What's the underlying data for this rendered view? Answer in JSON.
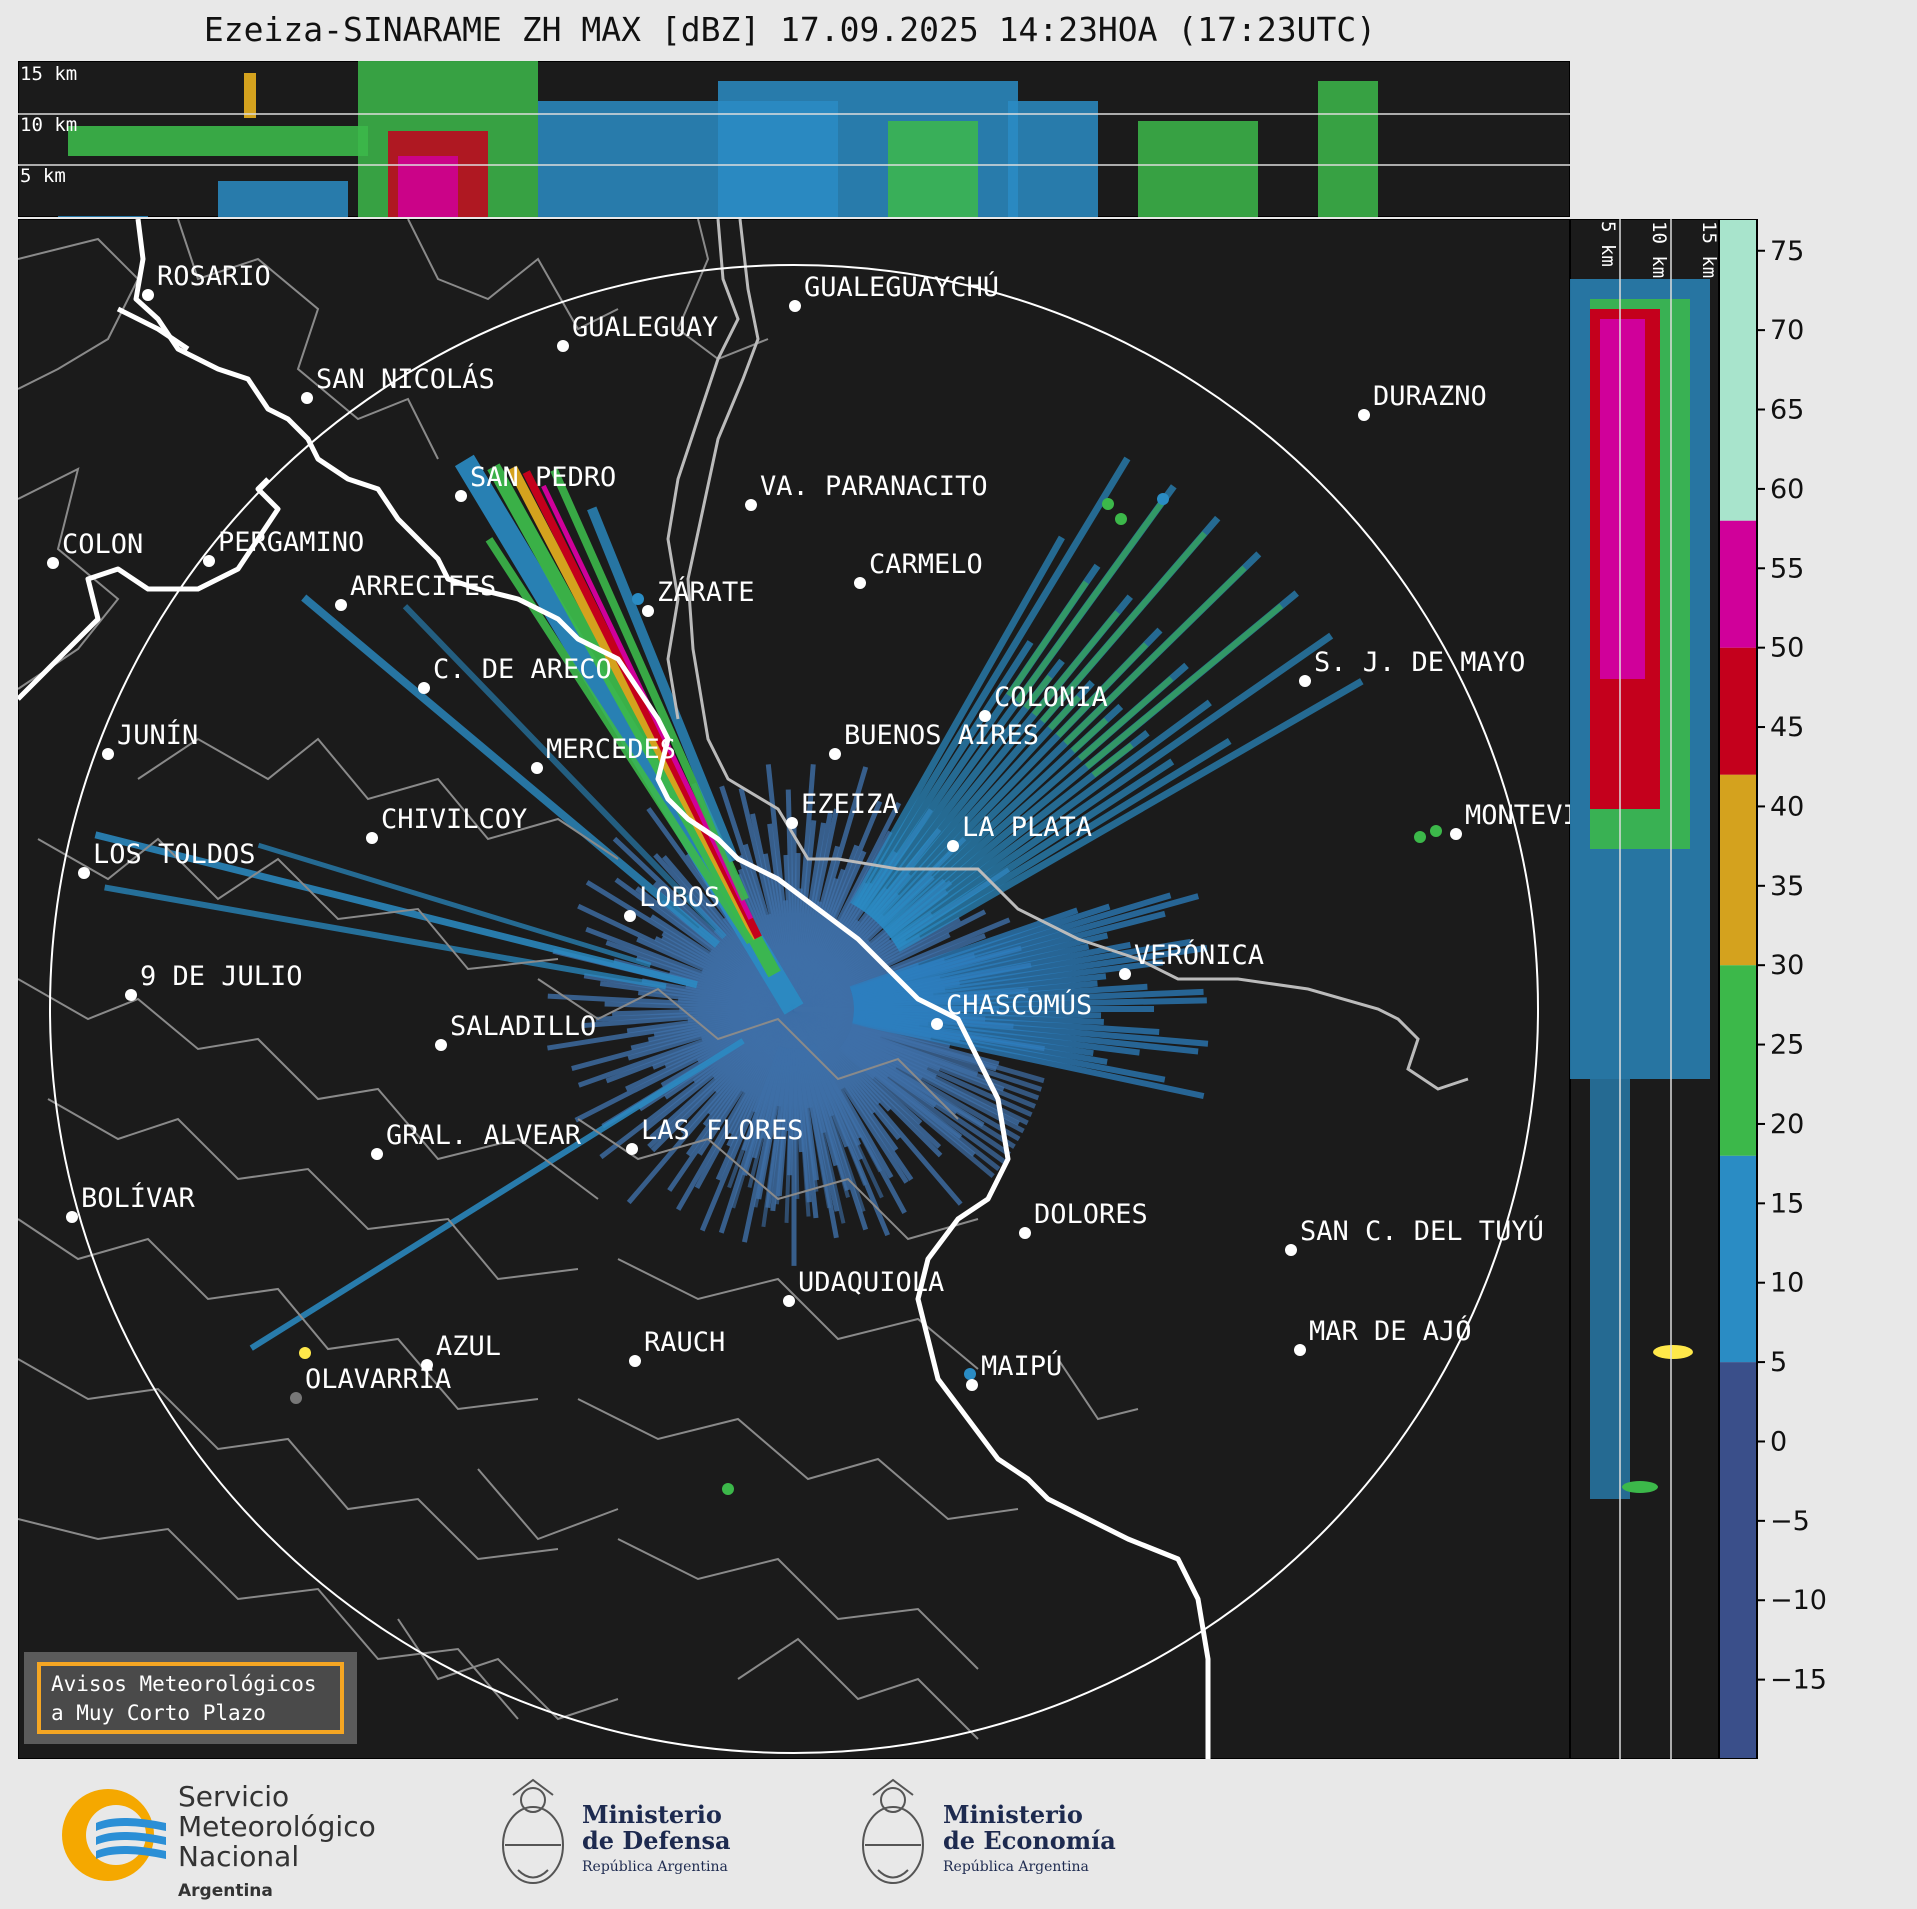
{
  "title": "Ezeiza-SINARAME ZH MAX [dBZ] 17.09.2025 14:23HOA (17:23UTC)",
  "radar_site": "EZEIZA",
  "product": "ZH MAX",
  "units": "dBZ",
  "colors": {
    "background": "#e8e8e8",
    "panel": "#1b1b1b",
    "province_borders": "#8a8a8a",
    "coast": "#ffffff",
    "warning_border": "#f5a623"
  },
  "height_labels": [
    "15 km",
    "10 km",
    "5 km"
  ],
  "side_height_labels": [
    "5 km",
    "10 km",
    "15 km"
  ],
  "colorbar": {
    "ticks": [
      "75",
      "70",
      "65",
      "60",
      "55",
      "50",
      "45",
      "40",
      "35",
      "30",
      "25",
      "20",
      "15",
      "10",
      "5",
      "0",
      "−5",
      "−10",
      "−15"
    ],
    "stops": [
      {
        "min": -20,
        "max": 5,
        "color": "#3a4f8a"
      },
      {
        "min": 5,
        "max": 18,
        "color": "#2a8cc4"
      },
      {
        "min": 18,
        "max": 30,
        "color": "#3cb84a"
      },
      {
        "min": 30,
        "max": 42,
        "color": "#d4a21e"
      },
      {
        "min": 42,
        "max": 50,
        "color": "#c4001c"
      },
      {
        "min": 50,
        "max": 58,
        "color": "#d0009a"
      },
      {
        "min": 58,
        "max": 77,
        "color": "#a8e4cc"
      }
    ]
  },
  "cities": [
    {
      "name": "ROSARIO"
    },
    {
      "name": "GUALEGUAYCHÚ"
    },
    {
      "name": "GUALEGUAY"
    },
    {
      "name": "SAN NICOLÁS"
    },
    {
      "name": "DURAZNO"
    },
    {
      "name": "SAN PEDRO"
    },
    {
      "name": "VA. PARANACITO"
    },
    {
      "name": "COLON"
    },
    {
      "name": "PERGAMINO"
    },
    {
      "name": "CARMELO"
    },
    {
      "name": "ARRECIFES"
    },
    {
      "name": "ZÁRATE"
    },
    {
      "name": "S. J. DE MAYO"
    },
    {
      "name": "C. DE ARECO"
    },
    {
      "name": "COLONIA"
    },
    {
      "name": "JUNÍN"
    },
    {
      "name": "BUENOS AIRES"
    },
    {
      "name": "MERCEDES"
    },
    {
      "name": "EZEIZA"
    },
    {
      "name": "MONTEVIDEO"
    },
    {
      "name": "CHIVILCOY"
    },
    {
      "name": "LA PLATA"
    },
    {
      "name": "LOS TOLDOS"
    },
    {
      "name": "LOBOS"
    },
    {
      "name": "VERÓNICA"
    },
    {
      "name": "9 DE JULIO"
    },
    {
      "name": "CHASCOMÚS"
    },
    {
      "name": "SALADILLO"
    },
    {
      "name": "GRAL. ALVEAR"
    },
    {
      "name": "LAS FLORES"
    },
    {
      "name": "BOLÍVAR"
    },
    {
      "name": "DOLORES"
    },
    {
      "name": "SAN C. DEL TUYÚ"
    },
    {
      "name": "UDAQUIOLA"
    },
    {
      "name": "MAR DE AJÓ"
    },
    {
      "name": "AZUL"
    },
    {
      "name": "RAUCH"
    },
    {
      "name": "OLAVARRÍA"
    },
    {
      "name": "MAIPÚ"
    }
  ],
  "warning_box": {
    "line1": "Avisos Meteorológicos",
    "line2": "a Muy Corto Plazo"
  },
  "logos": {
    "smn": {
      "line1": "Servicio",
      "line2": "Meteorológico",
      "line3": "Nacional",
      "line4": "Argentina"
    },
    "defensa": {
      "line1": "Ministerio",
      "line2": "de Defensa",
      "line3": "República Argentina"
    },
    "economia": {
      "line1": "Ministerio",
      "line2": "de Economía",
      "line3": "República Argentina"
    }
  }
}
